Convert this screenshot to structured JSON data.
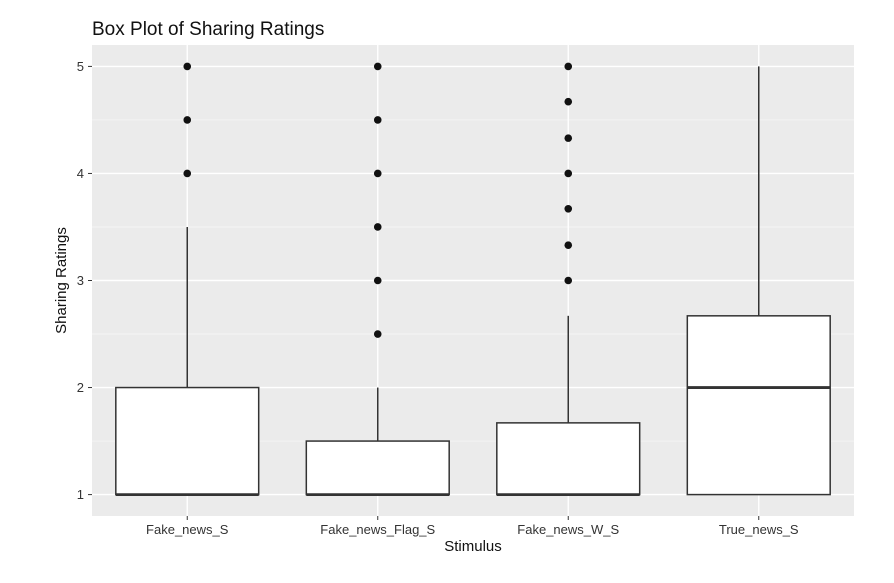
{
  "chart_data": {
    "type": "box",
    "title": "Box Plot of Sharing Ratings",
    "xlabel": "Stimulus",
    "ylabel": "Sharing Ratings",
    "ylim": [
      0.8,
      5.2
    ],
    "yticks": [
      1,
      2,
      3,
      4,
      5
    ],
    "grid": true,
    "categories": [
      "Fake_news_S",
      "Fake_news_Flag_S",
      "Fake_news_W_S",
      "True_news_S"
    ],
    "boxes": [
      {
        "category": "Fake_news_S",
        "whisker_low": 1,
        "q1": 1,
        "median": 1,
        "q3": 2,
        "whisker_high": 3.5,
        "outliers": [
          4,
          4.5,
          5
        ]
      },
      {
        "category": "Fake_news_Flag_S",
        "whisker_low": 1,
        "q1": 1,
        "median": 1,
        "q3": 1.5,
        "whisker_high": 2,
        "outliers": [
          2.5,
          3,
          3.5,
          4,
          4.5,
          5
        ]
      },
      {
        "category": "Fake_news_W_S",
        "whisker_low": 1,
        "q1": 1,
        "median": 1,
        "q3": 1.67,
        "whisker_high": 2.67,
        "outliers": [
          3,
          3.33,
          3.67,
          4,
          4.33,
          4.67,
          5
        ]
      },
      {
        "category": "True_news_S",
        "whisker_low": 1,
        "q1": 1,
        "median": 2,
        "q3": 2.67,
        "whisker_high": 5,
        "outliers": []
      }
    ],
    "colors": {
      "panel": "#ebebeb",
      "grid_major": "#ffffff",
      "box_fill": "#ffffff",
      "line": "#333333",
      "outlier": "#111111"
    }
  }
}
